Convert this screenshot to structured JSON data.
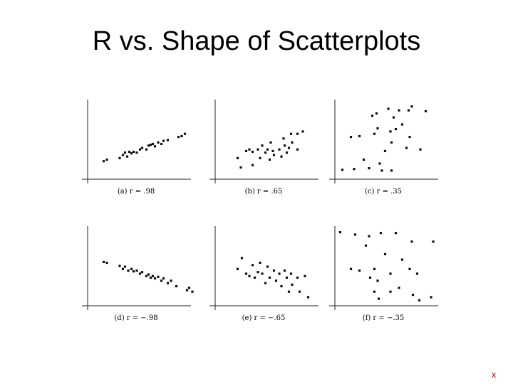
{
  "title": "R vs. Shape of Scatterplots",
  "footer_mark": "x",
  "chart_data": [
    {
      "type": "scatter",
      "caption": "(a) r = .98",
      "xlim": [
        0,
        10
      ],
      "ylim": [
        0,
        10
      ],
      "x": [
        1.5,
        1.8,
        3.0,
        3.3,
        3.5,
        3.7,
        3.9,
        4.1,
        4.3,
        4.6,
        4.9,
        5.1,
        5.5,
        5.7,
        5.9,
        6.1,
        6.3,
        6.6,
        6.9,
        7.1,
        7.5,
        8.5,
        8.8,
        9.1
      ],
      "values": [
        2.3,
        2.5,
        2.7,
        3.1,
        3.4,
        2.9,
        3.5,
        3.3,
        3.5,
        3.4,
        3.8,
        4.0,
        3.8,
        4.3,
        4.4,
        4.5,
        4.2,
        4.7,
        4.5,
        4.9,
        5.0,
        5.4,
        5.5,
        5.8
      ]
    },
    {
      "type": "scatter",
      "caption": "(b) r = .65",
      "xlim": [
        0,
        10
      ],
      "ylim": [
        0,
        10
      ],
      "x": [
        2.1,
        2.4,
        2.9,
        3.2,
        3.5,
        3.5,
        4.0,
        4.2,
        4.4,
        4.7,
        4.9,
        5.1,
        5.2,
        5.4,
        5.5,
        6.0,
        6.2,
        6.4,
        6.5,
        6.7,
        6.9,
        7.1,
        7.2,
        7.7,
        7.7,
        8.2
      ],
      "values": [
        2.7,
        1.5,
        3.6,
        3.8,
        3.5,
        1.8,
        3.8,
        2.7,
        4.3,
        3.4,
        3.8,
        2.5,
        4.7,
        3.6,
        3.1,
        3.8,
        2.9,
        5.2,
        4.3,
        3.4,
        4.0,
        5.8,
        4.7,
        3.8,
        5.8,
        6.1
      ]
    },
    {
      "type": "scatter",
      "caption": "(c) r = .35",
      "xlim": [
        0,
        10
      ],
      "ylim": [
        0,
        10
      ],
      "x": [
        0.7,
        1.8,
        1.5,
        2.3,
        2.7,
        3.2,
        3.5,
        3.7,
        3.9,
        4.0,
        4.2,
        4.4,
        4.7,
        5.0,
        5.2,
        5.3,
        5.3,
        5.5,
        5.7,
        6.0,
        6.3,
        6.7,
        6.9,
        7.0,
        7.2,
        8.0,
        8.5
      ],
      "values": [
        1.2,
        1.3,
        5.4,
        5.5,
        2.5,
        1.4,
        8.1,
        5.8,
        8.4,
        6.5,
        2.0,
        1.1,
        3.6,
        9.0,
        6.1,
        1.1,
        4.7,
        7.9,
        6.4,
        8.8,
        7.0,
        4.0,
        8.8,
        5.4,
        9.3,
        3.8,
        8.7
      ]
    },
    {
      "type": "scatter",
      "caption": "(d) r = −.98",
      "xlim": [
        0,
        10
      ],
      "ylim": [
        0,
        10
      ],
      "x": [
        1.5,
        1.8,
        3.0,
        3.3,
        3.5,
        3.8,
        4.1,
        4.3,
        4.6,
        4.9,
        5.1,
        5.5,
        5.7,
        5.9,
        6.1,
        6.3,
        6.6,
        6.9,
        7.1,
        7.5,
        7.8,
        8.3,
        9.3,
        9.5,
        9.8
      ],
      "values": [
        5.6,
        5.5,
        5.1,
        4.7,
        5.0,
        4.5,
        4.7,
        4.4,
        4.5,
        4.1,
        4.3,
        3.8,
        4.0,
        3.6,
        3.8,
        3.5,
        3.7,
        3.2,
        3.5,
        2.9,
        3.2,
        2.5,
        2.0,
        2.3,
        1.8
      ]
    },
    {
      "type": "scatter",
      "caption": "(e) r = −.65",
      "xlim": [
        0,
        10
      ],
      "ylim": [
        0,
        10
      ],
      "x": [
        2.1,
        2.5,
        2.9,
        3.2,
        3.5,
        3.7,
        4.0,
        4.2,
        4.4,
        4.7,
        4.9,
        5.1,
        5.5,
        5.7,
        6.0,
        6.2,
        6.5,
        6.7,
        6.9,
        7.1,
        7.2,
        7.7,
        7.9,
        8.4,
        8.7
      ],
      "values": [
        4.7,
        6.1,
        4.1,
        3.8,
        5.2,
        3.6,
        4.3,
        5.5,
        4.1,
        2.9,
        5.0,
        3.6,
        4.5,
        3.2,
        4.1,
        2.5,
        4.5,
        3.6,
        1.8,
        4.1,
        2.7,
        3.6,
        1.8,
        3.8,
        1.1
      ]
    },
    {
      "type": "scatter",
      "caption": "(f) r = −.35",
      "xlim": [
        0,
        10
      ],
      "ylim": [
        0,
        10
      ],
      "x": [
        0.5,
        1.9,
        2.9,
        3.2,
        4.3,
        4.7,
        5.7,
        7.2,
        9.2,
        1.5,
        2.3,
        3.7,
        5.2,
        3.3,
        4.0,
        6.3,
        7.0,
        7.7,
        3.7,
        5.2,
        6.0,
        4.1,
        7.3,
        7.9,
        9.0
      ],
      "values": [
        9.4,
        9.1,
        7.7,
        8.9,
        9.3,
        6.6,
        9.3,
        8.2,
        8.2,
        4.7,
        4.5,
        4.7,
        4.1,
        3.6,
        3.2,
        5.9,
        4.7,
        4.1,
        1.8,
        1.8,
        2.3,
        0.9,
        1.4,
        0.7,
        1.1
      ]
    }
  ]
}
